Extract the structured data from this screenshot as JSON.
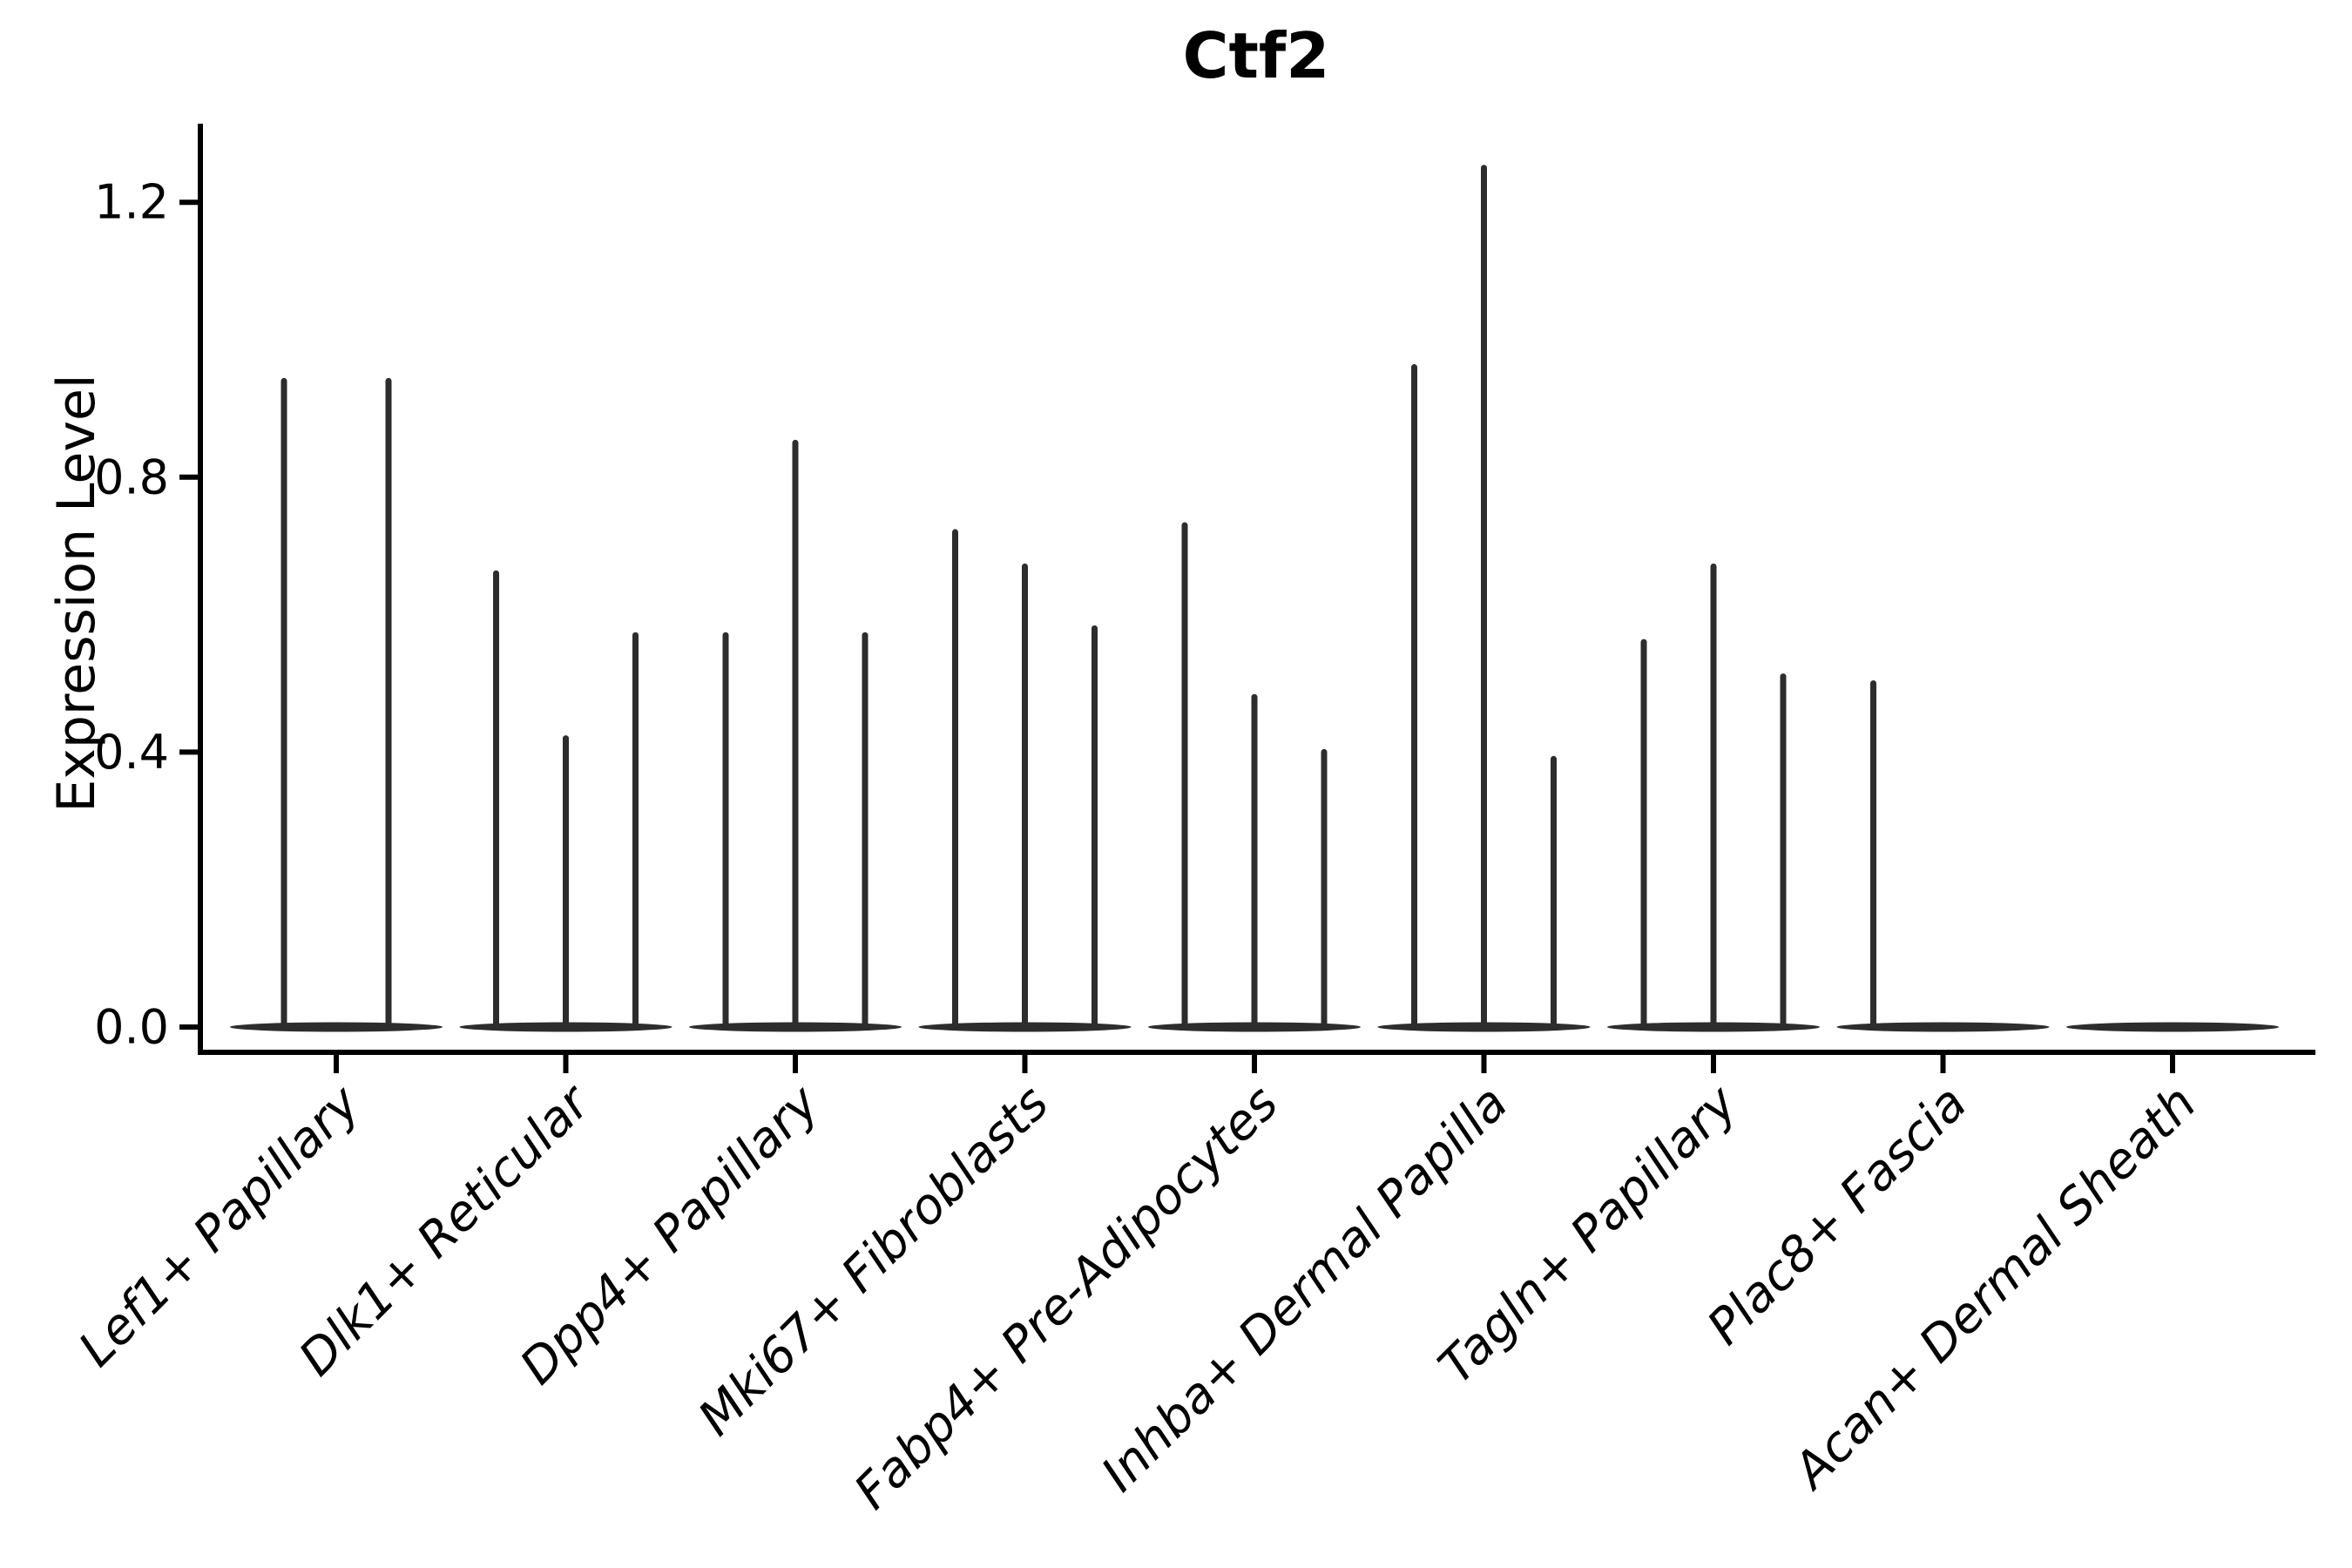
{
  "chart": {
    "title": "Ctf2",
    "ylabel": "Expression Level"
  },
  "chart_data": {
    "type": "violin",
    "title": "Ctf2",
    "xlabel": "",
    "ylabel": "Expression Level",
    "ylim": [
      0,
      1.31
    ],
    "ytick_values": [
      0.0,
      0.4,
      0.8,
      1.2
    ],
    "grid": false,
    "legend": false,
    "x_tick_style": "italic, rotated 45deg, right-anchored",
    "categories": [
      "Lef1+ Papillary",
      "Dlk1+ Reticular",
      "Dpp4+ Papillary",
      "Mki67+ Fibroblasts",
      "Fabp4+ Pre-Adipocytes",
      "Inhba+ Dermal Papilla",
      "Tagln+ Papillary",
      "Plac8+ Fascia",
      "Acan+ Dermal Sheath"
    ],
    "series": [
      {
        "category": "Lef1+ Papillary",
        "violins": [
          {
            "offset": -60,
            "peak": 0.94
          },
          {
            "offset": 60,
            "peak": 0.94
          }
        ]
      },
      {
        "category": "Dlk1+ Reticular",
        "violins": [
          {
            "offset": -80,
            "peak": 0.66
          },
          {
            "offset": 0,
            "peak": 0.42
          },
          {
            "offset": 80,
            "peak": 0.57
          }
        ]
      },
      {
        "category": "Dpp4+ Papillary",
        "violins": [
          {
            "offset": -80,
            "peak": 0.57
          },
          {
            "offset": 0,
            "peak": 0.85
          },
          {
            "offset": 80,
            "peak": 0.57
          }
        ]
      },
      {
        "category": "Mki67+ Fibroblasts",
        "violins": [
          {
            "offset": -80,
            "peak": 0.72
          },
          {
            "offset": 0,
            "peak": 0.67
          },
          {
            "offset": 80,
            "peak": 0.58
          }
        ]
      },
      {
        "category": "Fabp4+ Pre-Adipocytes",
        "violins": [
          {
            "offset": -80,
            "peak": 0.73
          },
          {
            "offset": 0,
            "peak": 0.48
          },
          {
            "offset": 80,
            "peak": 0.4
          }
        ]
      },
      {
        "category": "Inhba+ Dermal Papilla",
        "violins": [
          {
            "offset": -80,
            "peak": 0.96
          },
          {
            "offset": 0,
            "peak": 1.25
          },
          {
            "offset": 80,
            "peak": 0.39
          }
        ]
      },
      {
        "category": "Tagln+ Papillary",
        "violins": [
          {
            "offset": -80,
            "peak": 0.56
          },
          {
            "offset": 0,
            "peak": 0.67
          },
          {
            "offset": 80,
            "peak": 0.51
          }
        ]
      },
      {
        "category": "Plac8+ Fascia",
        "violins": [
          {
            "offset": -80,
            "peak": 0.5
          },
          {
            "offset": 0,
            "peak": 0.0
          },
          {
            "offset": 80,
            "peak": 0.0
          }
        ]
      },
      {
        "category": "Acan+ Dermal Sheath",
        "violins": [
          {
            "offset": -80,
            "peak": 0.0
          },
          {
            "offset": 0,
            "peak": 0.0
          },
          {
            "offset": 80,
            "peak": 0.0
          }
        ]
      }
    ],
    "colors": {
      "violin_stroke": "#2d2d2d",
      "axis": "#000000",
      "text": "#000000",
      "background": "#ffffff"
    }
  }
}
